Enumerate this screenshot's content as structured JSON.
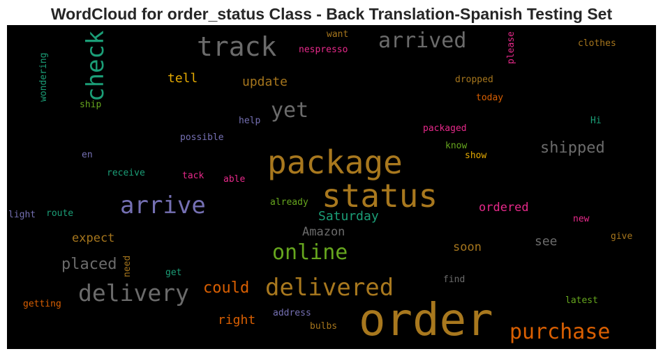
{
  "title": "WordCloud for order_status Class - Back Translation-Spanish Testing Set",
  "colors": {
    "gray": "#6b6b6b",
    "gold": "#a8781e",
    "teal": "#1b9e77",
    "purple": "#7570b3",
    "orange": "#d95f02",
    "magenta": "#e7298a",
    "green": "#66a61e",
    "yellow": "#e6ab02",
    "brown": "#a6761d"
  },
  "words": [
    {
      "text": "track",
      "color": "gray"
    },
    {
      "text": "arrived",
      "color": "gray"
    },
    {
      "text": "check",
      "color": "teal"
    },
    {
      "text": "want",
      "color": "brown"
    },
    {
      "text": "nespresso",
      "color": "magenta"
    },
    {
      "text": "please",
      "color": "magenta"
    },
    {
      "text": "clothes",
      "color": "brown"
    },
    {
      "text": "wondering",
      "color": "teal"
    },
    {
      "text": "tell",
      "color": "yellow"
    },
    {
      "text": "update",
      "color": "brown"
    },
    {
      "text": "dropped",
      "color": "brown"
    },
    {
      "text": "today",
      "color": "orange"
    },
    {
      "text": "ship",
      "color": "green"
    },
    {
      "text": "yet",
      "color": "gray"
    },
    {
      "text": "help",
      "color": "purple"
    },
    {
      "text": "Hi",
      "color": "teal"
    },
    {
      "text": "packaged",
      "color": "magenta"
    },
    {
      "text": "possible",
      "color": "purple"
    },
    {
      "text": "know",
      "color": "green"
    },
    {
      "text": "shipped",
      "color": "gray"
    },
    {
      "text": "show",
      "color": "yellow"
    },
    {
      "text": "en",
      "color": "purple"
    },
    {
      "text": "package",
      "color": "gold"
    },
    {
      "text": "receive",
      "color": "teal"
    },
    {
      "text": "tack",
      "color": "magenta"
    },
    {
      "text": "able",
      "color": "magenta"
    },
    {
      "text": "status",
      "color": "gold"
    },
    {
      "text": "arrive",
      "color": "purple"
    },
    {
      "text": "already",
      "color": "green"
    },
    {
      "text": "ordered",
      "color": "magenta"
    },
    {
      "text": "light",
      "color": "purple"
    },
    {
      "text": "route",
      "color": "teal"
    },
    {
      "text": "Saturday",
      "color": "teal"
    },
    {
      "text": "new",
      "color": "magenta"
    },
    {
      "text": "Amazon",
      "color": "gray"
    },
    {
      "text": "give",
      "color": "brown"
    },
    {
      "text": "expect",
      "color": "brown"
    },
    {
      "text": "online",
      "color": "green"
    },
    {
      "text": "soon",
      "color": "brown"
    },
    {
      "text": "see",
      "color": "gray"
    },
    {
      "text": "placed",
      "color": "gray"
    },
    {
      "text": "need",
      "color": "brown"
    },
    {
      "text": "get",
      "color": "teal"
    },
    {
      "text": "find",
      "color": "gray"
    },
    {
      "text": "delivery",
      "color": "gray"
    },
    {
      "text": "could",
      "color": "orange"
    },
    {
      "text": "delivered",
      "color": "gold"
    },
    {
      "text": "latest",
      "color": "green"
    },
    {
      "text": "getting",
      "color": "orange"
    },
    {
      "text": "address",
      "color": "purple"
    },
    {
      "text": "order",
      "color": "gold"
    },
    {
      "text": "right",
      "color": "orange"
    },
    {
      "text": "bulbs",
      "color": "brown"
    },
    {
      "text": "purchase",
      "color": "orange"
    }
  ]
}
